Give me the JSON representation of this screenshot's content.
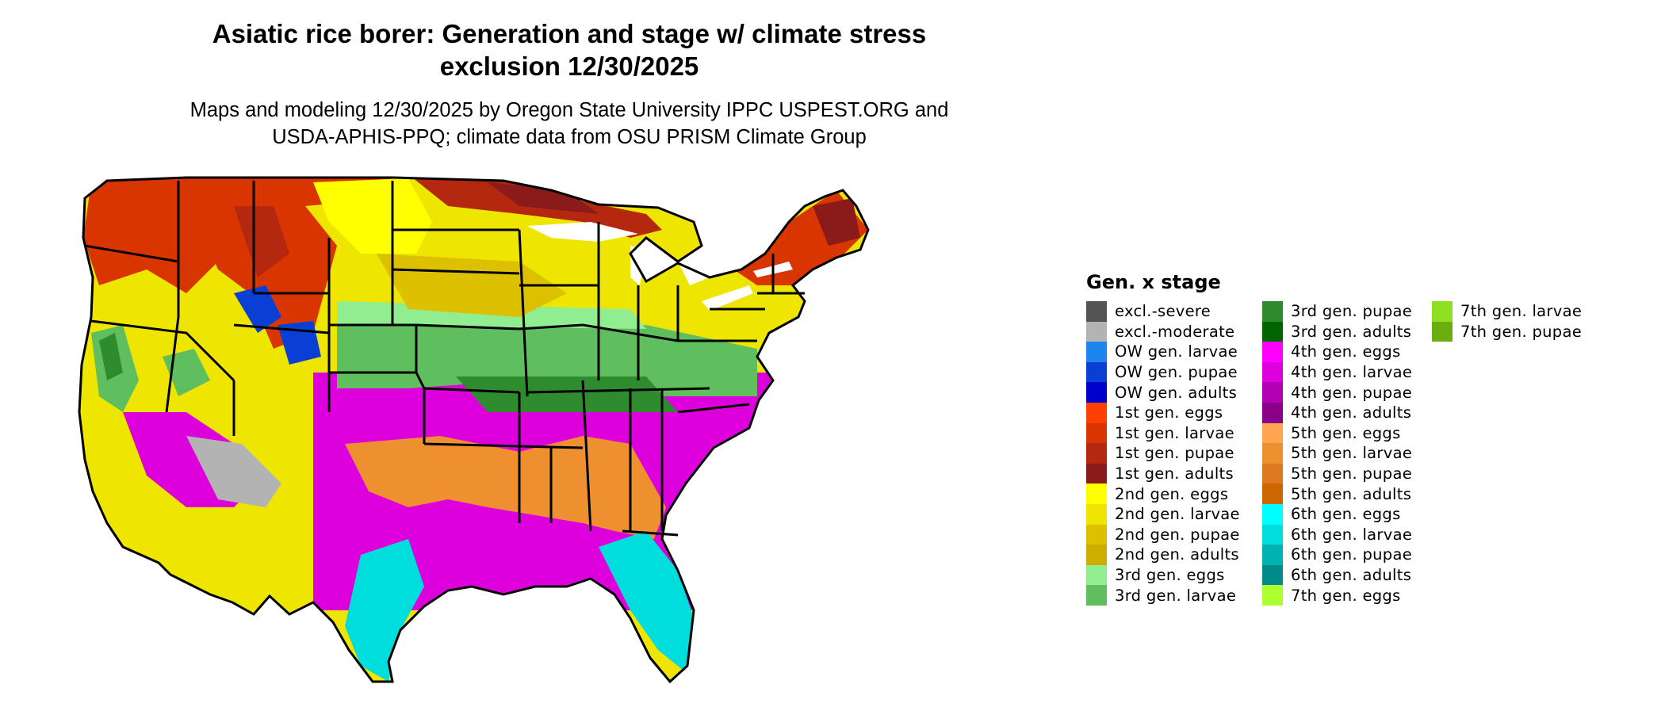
{
  "title_line1": "Asiatic rice borer: Generation and stage w/ climate stress",
  "title_line2": "exclusion 12/30/2025",
  "subtitle_line1": "Maps and modeling 12/30/2025 by Oregon State University IPPC USPEST.ORG and",
  "subtitle_line2": "USDA-APHIS-PPQ; climate data from OSU PRISM Climate Group",
  "legend": {
    "title": "Gen. x stage",
    "items": [
      {
        "label": "excl.-severe",
        "color": "#545454"
      },
      {
        "label": "excl.-moderate",
        "color": "#b3b3b3"
      },
      {
        "label": "OW gen. larvae",
        "color": "#1c86ee"
      },
      {
        "label": "OW gen. pupae",
        "color": "#0a3fd6"
      },
      {
        "label": "OW gen. adults",
        "color": "#0000cd"
      },
      {
        "label": "1st gen. eggs",
        "color": "#ff4000"
      },
      {
        "label": "1st gen. larvae",
        "color": "#d93500"
      },
      {
        "label": "1st gen. pupae",
        "color": "#b3280f"
      },
      {
        "label": "1st gen. adults",
        "color": "#8b1a1a"
      },
      {
        "label": "2nd gen. eggs",
        "color": "#ffff00"
      },
      {
        "label": "2nd gen. larvae",
        "color": "#eee600"
      },
      {
        "label": "2nd gen. pupae",
        "color": "#ddc000"
      },
      {
        "label": "2nd gen. adults",
        "color": "#cdad00"
      },
      {
        "label": "3rd gen. eggs",
        "color": "#90ee90"
      },
      {
        "label": "3rd gen. larvae",
        "color": "#5fbf5f"
      },
      {
        "label": "3rd gen. pupae",
        "color": "#2e8b2e"
      },
      {
        "label": "3rd gen. adults",
        "color": "#006400"
      },
      {
        "label": "4th gen. eggs",
        "color": "#ff00ff"
      },
      {
        "label": "4th gen. larvae",
        "color": "#dd00dd"
      },
      {
        "label": "4th gen. pupae",
        "color": "#b300b3"
      },
      {
        "label": "4th gen. adults",
        "color": "#8b008b"
      },
      {
        "label": "5th gen. eggs",
        "color": "#ffa54f"
      },
      {
        "label": "5th gen. larvae",
        "color": "#ee9030"
      },
      {
        "label": "5th gen. pupae",
        "color": "#dd7a20"
      },
      {
        "label": "5th gen. adults",
        "color": "#cd6600"
      },
      {
        "label": "6th gen. eggs",
        "color": "#00ffff"
      },
      {
        "label": "6th gen. larvae",
        "color": "#00dddd"
      },
      {
        "label": "6th gen. pupae",
        "color": "#00b3b3"
      },
      {
        "label": "6th gen. adults",
        "color": "#008b8b"
      },
      {
        "label": "7th gen. eggs",
        "color": "#adff2f"
      },
      {
        "label": "7th gen. larvae",
        "color": "#8fe020"
      },
      {
        "label": "7th gen. pupae",
        "color": "#6aae10"
      }
    ]
  }
}
